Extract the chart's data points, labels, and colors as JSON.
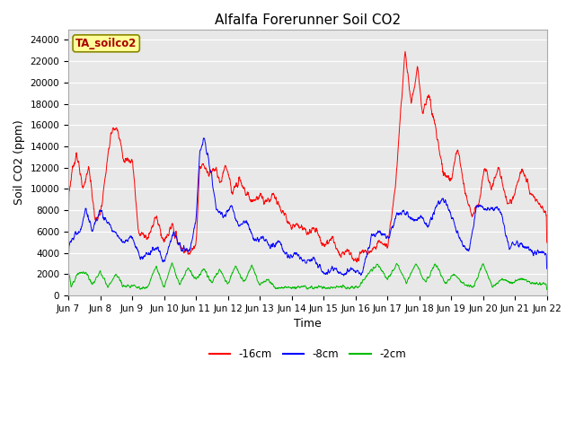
{
  "title": "Alfalfa Forerunner Soil CO2",
  "ylabel": "Soil CO2 (ppm)",
  "xlabel": "Time",
  "legend_label": "TA_soilco2",
  "series_labels": [
    "-16cm",
    "-8cm",
    "-2cm"
  ],
  "series_colors": [
    "#ff0000",
    "#0000ff",
    "#00bb00"
  ],
  "ylim": [
    0,
    25000
  ],
  "yticks": [
    0,
    2000,
    4000,
    6000,
    8000,
    10000,
    12000,
    14000,
    16000,
    18000,
    20000,
    22000,
    24000
  ],
  "xtick_labels": [
    "Jun 7",
    "Jun 8",
    "Jun 9",
    "Jun 10",
    "Jun 11",
    "Jun 12",
    "Jun 13",
    "Jun 14",
    "Jun 15",
    "Jun 16",
    "Jun 17",
    "Jun 18",
    "Jun 19",
    "Jun 20",
    "Jun 21",
    "Jun 22"
  ],
  "fig_bg_color": "#ffffff",
  "plot_bg_color": "#e8e8e8",
  "grid_color": "#ffffff",
  "title_fontsize": 11,
  "axis_label_fontsize": 9,
  "tick_fontsize": 7.5,
  "legend_box_facecolor": "#ffff99",
  "legend_text_color": "#aa0000",
  "legend_border_color": "#888800",
  "line_width": 0.7
}
